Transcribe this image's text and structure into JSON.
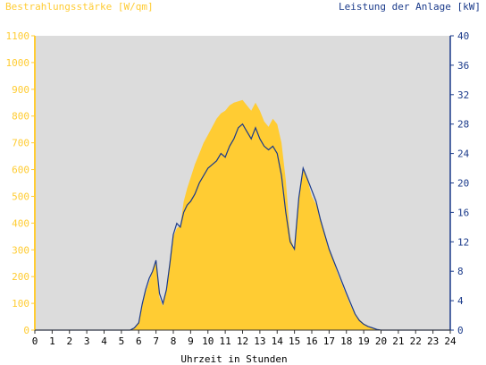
{
  "chart_data": {
    "type": "area",
    "left_axis_label": "Bestrahlungsstärke [W/qm]",
    "right_axis_label": "Leistung der Anlage [kW]",
    "xlabel": "Uhrzeit in Stunden",
    "x_ticks": [
      "0",
      "1",
      "2",
      "3",
      "4",
      "5",
      "6",
      "7",
      "8",
      "9",
      "10",
      "11",
      "12",
      "13",
      "14",
      "15",
      "16",
      "17",
      "18",
      "19",
      "20",
      "21",
      "22",
      "23",
      "24"
    ],
    "y_left_ticks": [
      "0",
      "100",
      "200",
      "300",
      "400",
      "500",
      "600",
      "700",
      "800",
      "900",
      "1000",
      "1100"
    ],
    "y_right_ticks": [
      "0",
      "4",
      "8",
      "12",
      "16",
      "20",
      "24",
      "28",
      "32",
      "36",
      "40"
    ],
    "xlim": [
      0,
      24
    ],
    "ylim_left": [
      0,
      1100
    ],
    "ylim_right": [
      0,
      40
    ],
    "colors": {
      "irradiance": "#ffcc33",
      "power": "#1a3a8a",
      "plot_bg": "#dcdcdc",
      "left_axis": "#ffcc33",
      "right_axis": "#1a3a8a"
    },
    "series": [
      {
        "name": "Bestrahlungsstärke",
        "axis": "left",
        "style": "filled-area",
        "x": [
          0,
          5.5,
          5.75,
          6,
          6.2,
          6.4,
          6.6,
          6.8,
          7,
          7.2,
          7.4,
          7.6,
          7.8,
          8,
          8.2,
          8.4,
          8.6,
          8.8,
          9,
          9.25,
          9.5,
          9.75,
          10,
          10.25,
          10.5,
          10.75,
          11,
          11.25,
          11.5,
          11.75,
          12,
          12.25,
          12.5,
          12.75,
          13,
          13.25,
          13.5,
          13.75,
          14,
          14.25,
          14.5,
          14.75,
          15,
          15.25,
          15.5,
          15.75,
          16,
          16.25,
          16.5,
          16.75,
          17,
          17.25,
          17.5,
          17.75,
          18,
          18.25,
          18.5,
          18.75,
          19,
          19.25,
          19.5,
          19.75,
          20,
          24
        ],
        "y": [
          0,
          0,
          10,
          30,
          90,
          140,
          180,
          220,
          260,
          120,
          90,
          150,
          250,
          350,
          380,
          390,
          480,
          530,
          570,
          620,
          660,
          700,
          730,
          760,
          790,
          810,
          820,
          840,
          850,
          855,
          860,
          840,
          820,
          850,
          820,
          780,
          760,
          790,
          770,
          700,
          560,
          350,
          300,
          500,
          600,
          560,
          500,
          470,
          420,
          360,
          300,
          260,
          210,
          170,
          130,
          90,
          60,
          40,
          25,
          15,
          8,
          3,
          0,
          0
        ]
      },
      {
        "name": "Leistung der Anlage",
        "axis": "right",
        "style": "line",
        "x": [
          0,
          5.5,
          5.75,
          6,
          6.2,
          6.4,
          6.6,
          6.8,
          7,
          7.2,
          7.4,
          7.6,
          7.8,
          8,
          8.2,
          8.4,
          8.6,
          8.8,
          9,
          9.25,
          9.5,
          9.75,
          10,
          10.25,
          10.5,
          10.75,
          11,
          11.25,
          11.5,
          11.75,
          12,
          12.25,
          12.5,
          12.75,
          13,
          13.25,
          13.5,
          13.75,
          14,
          14.25,
          14.5,
          14.75,
          15,
          15.25,
          15.5,
          15.75,
          16,
          16.25,
          16.5,
          16.75,
          17,
          17.25,
          17.5,
          17.75,
          18,
          18.25,
          18.5,
          18.75,
          19,
          19.25,
          19.5,
          19.75,
          20,
          24
        ],
        "y": [
          0,
          0,
          0.3,
          1,
          3.5,
          5.5,
          7,
          8,
          9.5,
          5,
          3.6,
          5.5,
          9,
          13,
          14.5,
          14,
          16,
          17,
          17.5,
          18.5,
          20,
          21,
          22,
          22.5,
          23,
          24,
          23.5,
          25,
          26,
          27.5,
          28,
          27,
          26,
          27.5,
          26,
          25,
          24.5,
          25,
          24,
          21,
          16,
          12,
          11,
          18,
          22,
          20.5,
          19,
          17.5,
          15,
          13,
          11,
          9.5,
          8,
          6.5,
          5,
          3.6,
          2.2,
          1.3,
          0.8,
          0.5,
          0.3,
          0.1,
          0,
          0
        ]
      }
    ]
  }
}
